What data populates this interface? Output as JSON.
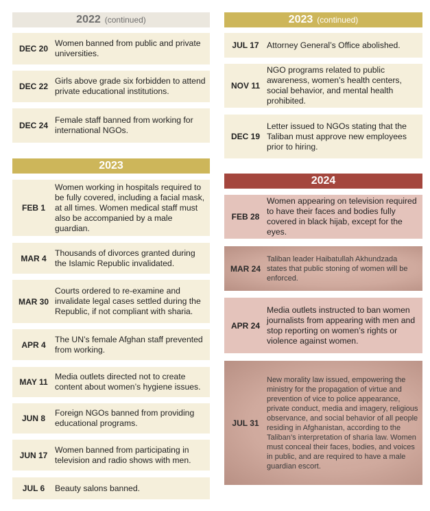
{
  "left": {
    "header_2022": {
      "year": "2022",
      "note": "(continued)"
    },
    "entries_2022": [
      {
        "date": "DEC 20",
        "text": "Women banned from public and private universities."
      },
      {
        "date": "DEC 22",
        "text": "Girls above grade six forbidden to attend private educational institutions."
      },
      {
        "date": "DEC 24",
        "text": "Female staff banned from working for international NGOs."
      }
    ],
    "header_2023": {
      "year": "2023"
    },
    "entries_2023": [
      {
        "date": "FEB 1",
        "text": "Women working in hospitals required to be fully covered, including a facial mask, at all times. Women medical staff must also be accompanied by a male guardian."
      },
      {
        "date": "MAR 4",
        "text": "Thousands of divorces granted during the Islamic Republic invalidated."
      },
      {
        "date": "MAR 30",
        "text": "Courts ordered to re-examine and invalidate legal cases settled during the Republic, if not compliant with sharia."
      },
      {
        "date": "APR 4",
        "text": "The UN’s female Afghan staff prevented from working."
      },
      {
        "date": "MAY 11",
        "text": "Media outlets directed not to create content about women’s hygiene issues."
      },
      {
        "date": "JUN 8",
        "text": "Foreign NGOs banned from providing educational programs."
      },
      {
        "date": "JUN 17",
        "text": "Women banned from participating in television and radio shows with men."
      },
      {
        "date": "JUL 6",
        "text": "Beauty salons banned."
      }
    ]
  },
  "right": {
    "header_2023": {
      "year": "2023",
      "note": "(continued)"
    },
    "entries_2023": [
      {
        "date": "JUL 17",
        "text": "Attorney General’s Office abolished."
      },
      {
        "date": "NOV 11",
        "text": "NGO programs related to public awareness, women’s health centers, social behavior, and mental health prohibited."
      },
      {
        "date": "DEC 19",
        "text": "Letter issued to NGOs stating that the Taliban must approve new employees prior to hiring."
      }
    ],
    "header_2024": {
      "year": "2024"
    },
    "entries_2024": [
      {
        "date": "FEB 28",
        "text": "Women appearing on television required to have their faces and bodies fully covered in black hijab, except for the eyes."
      },
      {
        "date": "MAR 24",
        "text": "Taliban leader Haibatullah Akhundzada states that public stoning of women will be enforced."
      },
      {
        "date": "APR 24",
        "text": "Media outlets instructed to ban women journalists from appearing with men and stop reporting on women’s rights or violence against women."
      },
      {
        "date": "JUL 31",
        "text": "New morality law issued, empowering the ministry for the propagation of virtue and prevention of vice to police appearance, private conduct, media and imagery, religious observance, and social behavior of all people residing in Afghanistan, according to the Taliban’s interpretation of sharia law. Women must conceal their faces, bodies, and voices in public, and are required to have a male guardian escort."
      }
    ]
  }
}
